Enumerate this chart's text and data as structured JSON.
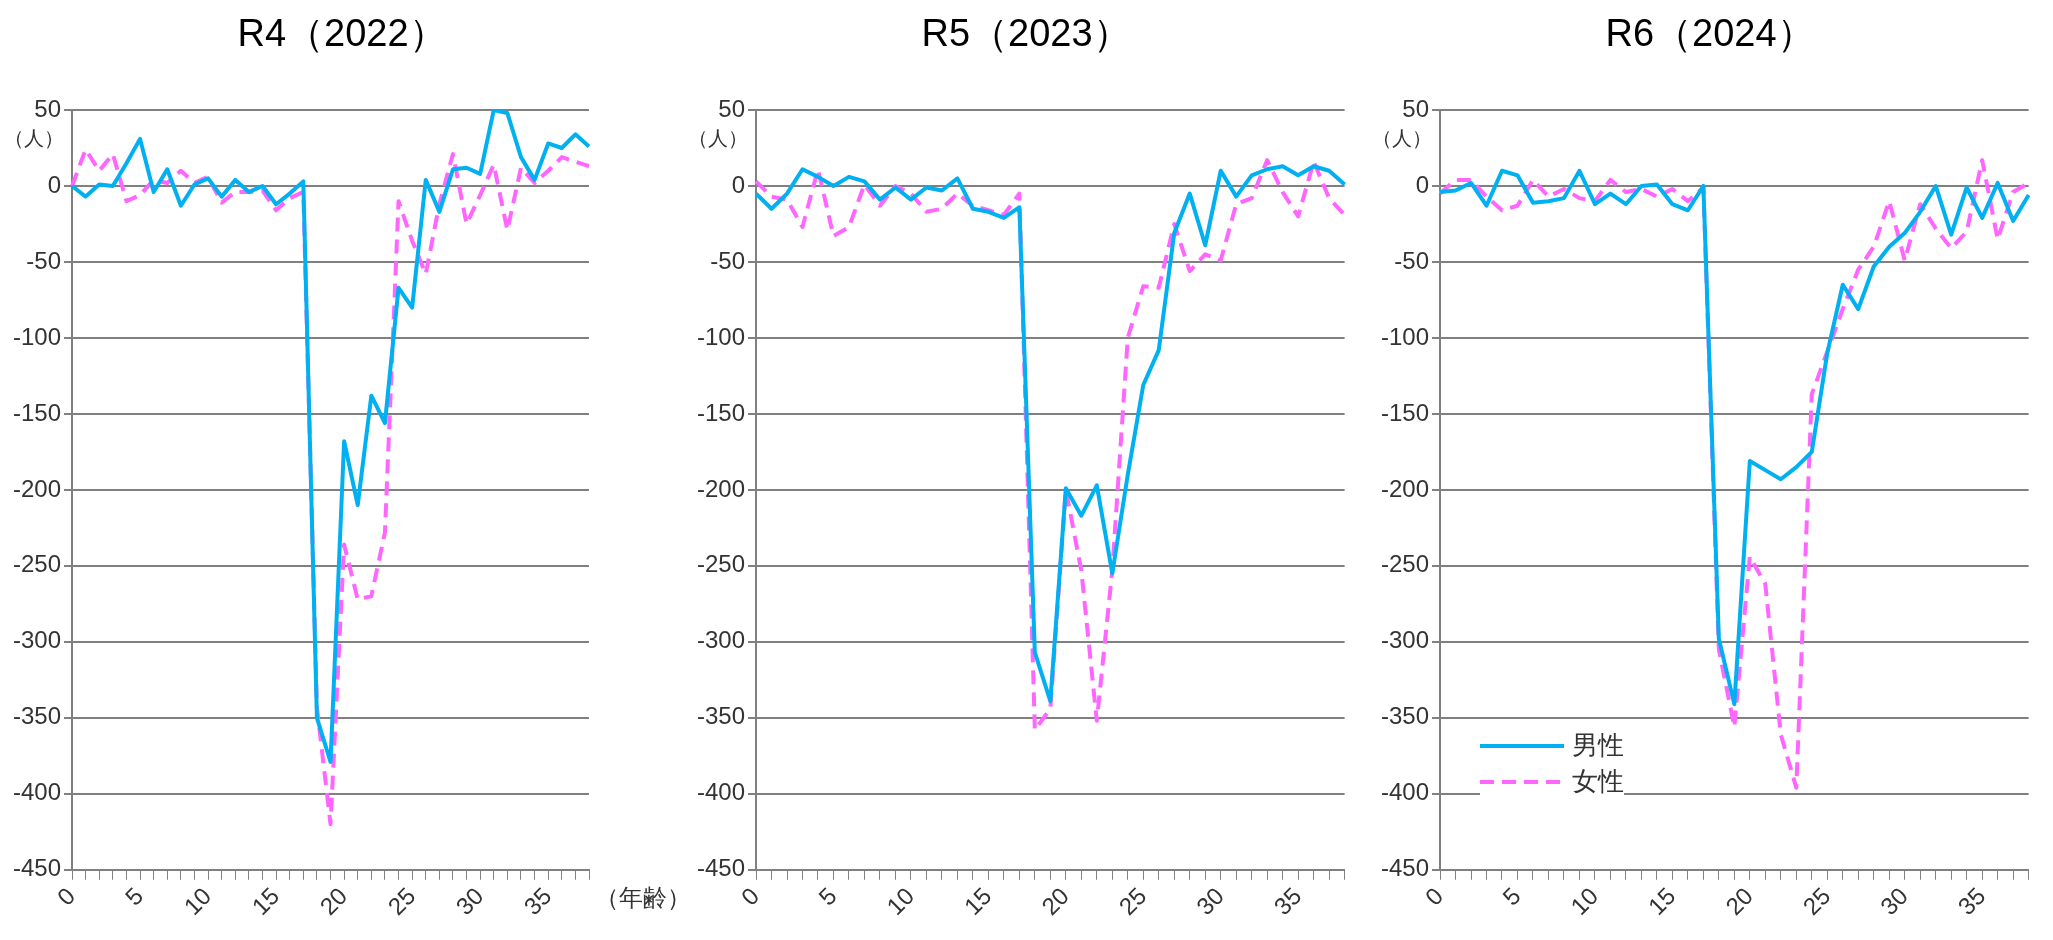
{
  "chart_data": [
    {
      "type": "line",
      "title": "R4（2022）",
      "ylabel": "（人）",
      "xlabel": "（年齢）",
      "categories": [
        "0",
        null,
        null,
        null,
        null,
        "5",
        null,
        null,
        null,
        null,
        "10",
        null,
        null,
        null,
        null,
        "15",
        null,
        null,
        null,
        null,
        "20",
        null,
        null,
        null,
        null,
        "25",
        null,
        null,
        null,
        null,
        "30",
        null,
        null,
        null,
        null,
        "35",
        null,
        null,
        null
      ],
      "series": [
        {
          "color": "#00b0f0",
          "line_style": "solid",
          "values": [
            0,
            -7,
            1,
            0,
            15,
            31,
            -4,
            11,
            -13,
            1,
            5,
            -7,
            4,
            -4,
            0,
            -12,
            -5,
            3,
            -350,
            -379,
            -168,
            -210,
            -138,
            -156,
            -67,
            -80,
            4,
            -17,
            11,
            12,
            8,
            50,
            48,
            19,
            4,
            28,
            25,
            34,
            26
          ]
        },
        {
          "color": "#ff66ff",
          "line_style": "dashed",
          "values": [
            0,
            24,
            10,
            21,
            -10,
            -6,
            4,
            2,
            10,
            2,
            6,
            -11,
            -4,
            -4,
            -3,
            -16,
            -8,
            -4,
            -343,
            -420,
            -236,
            -272,
            -270,
            -228,
            -10,
            -36,
            -58,
            -12,
            21,
            -25,
            -6,
            14,
            -29,
            12,
            2,
            10,
            19,
            16,
            13
          ]
        }
      ],
      "ylim": [
        -450,
        50
      ],
      "yticks": [
        -450,
        -400,
        -350,
        -300,
        -250,
        -200,
        -150,
        -100,
        -50,
        0,
        50
      ],
      "grid": "y",
      "legend": false
    },
    {
      "type": "line",
      "title": "R5（2023）",
      "ylabel": "（人）",
      "categories": [
        "0",
        null,
        null,
        null,
        null,
        "5",
        null,
        null,
        null,
        null,
        "10",
        null,
        null,
        null,
        null,
        "15",
        null,
        null,
        null,
        null,
        "20",
        null,
        null,
        null,
        null,
        "25",
        null,
        null,
        null,
        null,
        "30",
        null,
        null,
        null,
        null,
        "35",
        null,
        null,
        null
      ],
      "series": [
        {
          "color": "#00b0f0",
          "line_style": "solid",
          "values": [
            -5,
            -15,
            -5,
            11,
            6,
            0,
            6,
            3,
            -9,
            -1,
            -9,
            -1,
            -3,
            5,
            -15,
            -17,
            -21,
            -14,
            -307,
            -339,
            -199,
            -217,
            -197,
            -255,
            -190,
            -131,
            -108,
            -31,
            -5,
            -39,
            10,
            -7,
            7,
            11,
            13,
            7,
            13,
            10,
            1
          ]
        },
        {
          "color": "#ff66ff",
          "line_style": "dashed",
          "values": [
            3,
            -7,
            -9,
            -27,
            11,
            -33,
            -27,
            1,
            -13,
            0,
            -5,
            -17,
            -15,
            -5,
            -13,
            -16,
            -19,
            -5,
            -358,
            -344,
            -200,
            -253,
            -352,
            -253,
            -100,
            -66,
            -67,
            -25,
            -56,
            -45,
            -49,
            -12,
            -8,
            17,
            -4,
            -20,
            16,
            -8,
            -19
          ]
        }
      ],
      "ylim": [
        -450,
        50
      ],
      "yticks": [
        -450,
        -400,
        -350,
        -300,
        -250,
        -200,
        -150,
        -100,
        -50,
        0,
        50
      ],
      "grid": "y",
      "legend": false
    },
    {
      "type": "line",
      "title": "R6（2024）",
      "ylabel": "（人）",
      "categories": [
        "0",
        null,
        null,
        null,
        null,
        "5",
        null,
        null,
        null,
        null,
        "10",
        null,
        null,
        null,
        null,
        "15",
        null,
        null,
        null,
        null,
        "20",
        null,
        null,
        null,
        null,
        "25",
        null,
        null,
        null,
        null,
        "30",
        null,
        null,
        null,
        null,
        "35",
        null,
        null,
        null
      ],
      "series": [
        {
          "name": "男性",
          "color": "#00b0f0",
          "line_style": "solid",
          "values": [
            -4,
            -3,
            2,
            -13,
            10,
            7,
            -11,
            -10,
            -8,
            10,
            -12,
            -5,
            -12,
            0,
            1,
            -12,
            -16,
            0,
            -298,
            -341,
            -181,
            -187,
            -193,
            -185,
            -175,
            -110,
            -65,
            -81,
            -53,
            -40,
            -31,
            -17,
            0,
            -32,
            -1,
            -21,
            2,
            -23,
            -6
          ]
        },
        {
          "name": "女性",
          "color": "#ff66ff",
          "line_style": "dashed",
          "values": [
            -5,
            4,
            4,
            -7,
            -16,
            -13,
            4,
            -7,
            -2,
            -8,
            -10,
            4,
            -4,
            -2,
            -7,
            -2,
            -10,
            -1,
            -305,
            -356,
            -244,
            -262,
            -361,
            -396,
            -137,
            -109,
            -81,
            -55,
            -40,
            -10,
            -49,
            -12,
            -28,
            -41,
            -30,
            17,
            -35,
            -4,
            2
          ]
        }
      ],
      "ylim": [
        -450,
        50
      ],
      "yticks": [
        -450,
        -400,
        -350,
        -300,
        -250,
        -200,
        -150,
        -100,
        -50,
        0,
        50
      ],
      "grid": "y",
      "legend": "bottom left"
    }
  ]
}
